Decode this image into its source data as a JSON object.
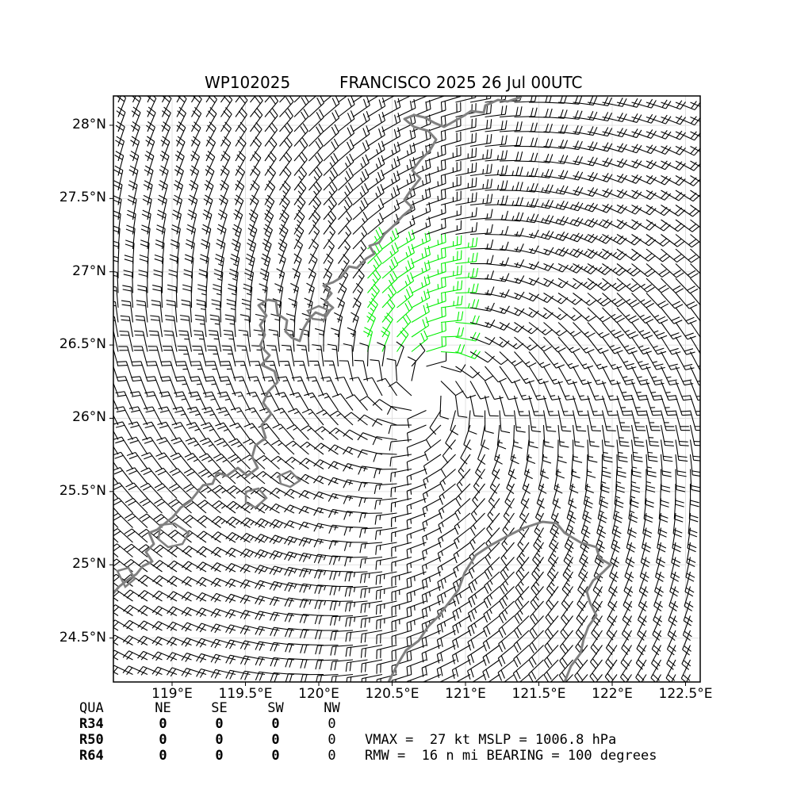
{
  "title": {
    "storm_id": "WP102025",
    "storm_name_time": "FRANCISCO 2025 26 Jul 00UTC"
  },
  "map": {
    "lon_range": [
      118.6,
      122.6
    ],
    "lat_range": [
      24.2,
      28.2
    ],
    "x_ticks": [
      {
        "value": 119.0,
        "label": "119°E"
      },
      {
        "value": 119.5,
        "label": "119.5°E"
      },
      {
        "value": 120.0,
        "label": "120°E"
      },
      {
        "value": 120.5,
        "label": "120.5°E"
      },
      {
        "value": 121.0,
        "label": "121°E"
      },
      {
        "value": 121.5,
        "label": "121.5°E"
      },
      {
        "value": 122.0,
        "label": "122°E"
      },
      {
        "value": 122.5,
        "label": "122.5°E"
      }
    ],
    "y_ticks": [
      {
        "value": 24.5,
        "label": "24.5°N"
      },
      {
        "value": 25.0,
        "label": "25°N"
      },
      {
        "value": 25.5,
        "label": "25.5°N"
      },
      {
        "value": 26.0,
        "label": "26°N"
      },
      {
        "value": 26.5,
        "label": "26.5°N"
      },
      {
        "value": 27.0,
        "label": "27°N"
      },
      {
        "value": 27.5,
        "label": "27.5°N"
      },
      {
        "value": 28.0,
        "label": "28°N"
      }
    ],
    "gridlines": true,
    "storm_center": {
      "lon": 120.72,
      "lat": 26.2
    },
    "coastline_color": "#808080",
    "barb_color": "#000000",
    "high_wind_barb_color": "#00ee00"
  },
  "wind_radii": {
    "header": [
      "QUA",
      "NE",
      "SE",
      "SW",
      "NW"
    ],
    "rows": [
      {
        "label": "R34",
        "values": [
          "0",
          "0",
          "0",
          "0"
        ]
      },
      {
        "label": "R50",
        "values": [
          "0",
          "0",
          "0",
          "0"
        ]
      },
      {
        "label": "R64",
        "values": [
          "0",
          "0",
          "0",
          "0"
        ]
      }
    ]
  },
  "info": {
    "line1": "VMAX =  27 kt MSLP = 1006.8 hPa",
    "line2": "RMW =  16 n mi BEARING = 100 degrees"
  }
}
